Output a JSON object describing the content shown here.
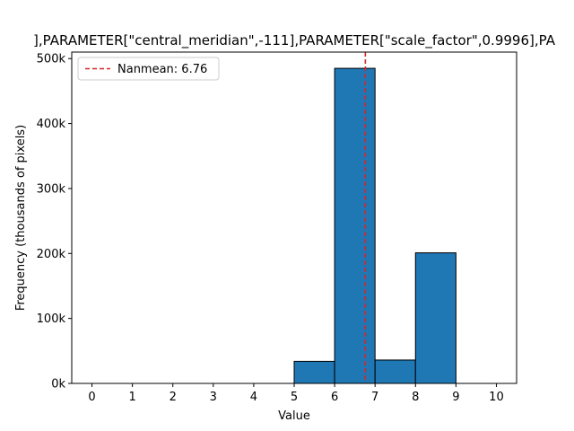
{
  "chart_data": {
    "type": "bar",
    "title": "],PARAMETER[\"central_meridian\",-111],PARAMETER[\"scale_factor\",0.9996],PA",
    "xlabel": "Value",
    "ylabel": "Frequency (thousands of pixels)",
    "bins": [
      {
        "start": 5,
        "end": 6,
        "value": 34000
      },
      {
        "start": 6,
        "end": 7,
        "value": 485000
      },
      {
        "start": 7,
        "end": 8,
        "value": 36000
      },
      {
        "start": 8,
        "end": 9,
        "value": 201000
      }
    ],
    "xlim": [
      -0.5,
      10.5
    ],
    "ylim": [
      0,
      510000
    ],
    "xticks": [
      0,
      1,
      2,
      3,
      4,
      5,
      6,
      7,
      8,
      9,
      10
    ],
    "xtick_labels": [
      "0",
      "1",
      "2",
      "3",
      "4",
      "5",
      "6",
      "7",
      "8",
      "9",
      "10"
    ],
    "yticks": [
      0,
      100000,
      200000,
      300000,
      400000,
      500000
    ],
    "ytick_labels": [
      "0k",
      "100k",
      "200k",
      "300k",
      "400k",
      "500k"
    ],
    "mean_line": {
      "value": 6.76,
      "label": "Nanmean: 6.76",
      "color": "#d62728"
    },
    "bar_color": "#1f77b4",
    "edge_color": "#000000",
    "grid": false,
    "legend_position": "upper-left"
  }
}
